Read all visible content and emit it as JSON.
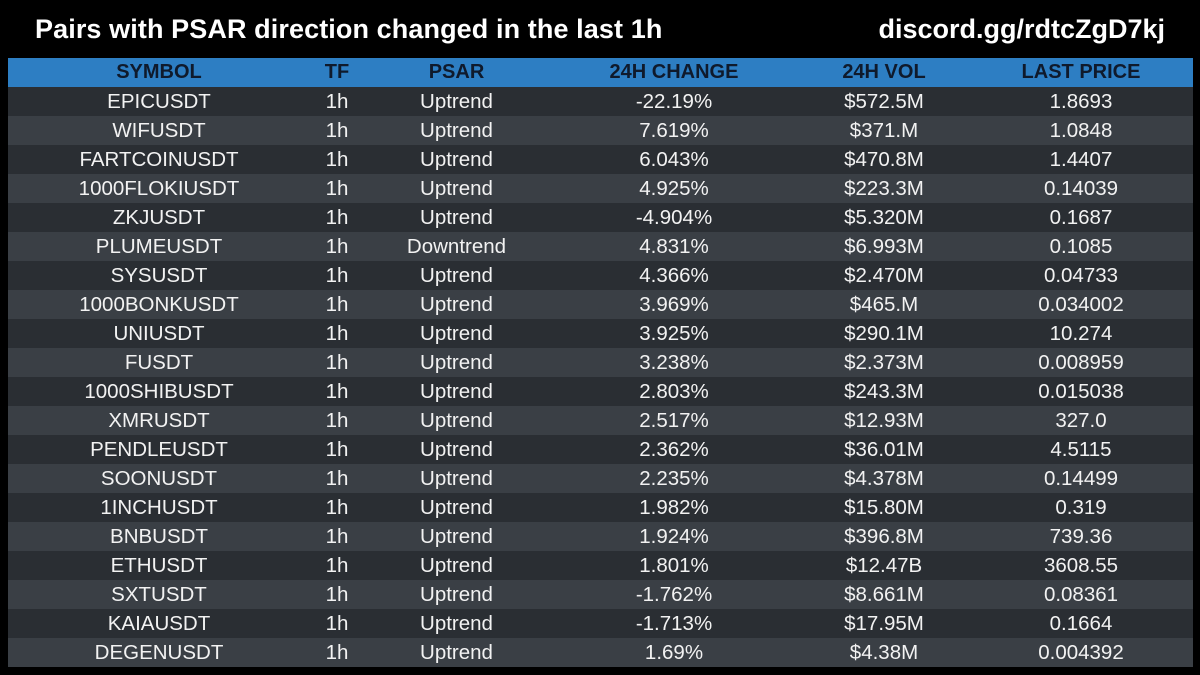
{
  "header": {
    "title": "Pairs with PSAR direction changed in the last 1h",
    "link": "discord.gg/rdtcZgD7kj"
  },
  "table": {
    "columns": [
      "SYMBOL",
      "TF",
      "PSAR",
      "24H CHANGE",
      "24H VOL",
      "LAST PRICE"
    ],
    "rows": [
      [
        "EPICUSDT",
        "1h",
        "Uptrend",
        "-22.19%",
        "$572.5M",
        "1.8693"
      ],
      [
        "WIFUSDT",
        "1h",
        "Uptrend",
        "7.619%",
        "$371.M",
        "1.0848"
      ],
      [
        "FARTCOINUSDT",
        "1h",
        "Uptrend",
        "6.043%",
        "$470.8M",
        "1.4407"
      ],
      [
        "1000FLOKIUSDT",
        "1h",
        "Uptrend",
        "4.925%",
        "$223.3M",
        "0.14039"
      ],
      [
        "ZKJUSDT",
        "1h",
        "Uptrend",
        "-4.904%",
        "$5.320M",
        "0.1687"
      ],
      [
        "PLUMEUSDT",
        "1h",
        "Downtrend",
        "4.831%",
        "$6.993M",
        "0.1085"
      ],
      [
        "SYSUSDT",
        "1h",
        "Uptrend",
        "4.366%",
        "$2.470M",
        "0.04733"
      ],
      [
        "1000BONKUSDT",
        "1h",
        "Uptrend",
        "3.969%",
        "$465.M",
        "0.034002"
      ],
      [
        "UNIUSDT",
        "1h",
        "Uptrend",
        "3.925%",
        "$290.1M",
        "10.274"
      ],
      [
        "FUSDT",
        "1h",
        "Uptrend",
        "3.238%",
        "$2.373M",
        "0.008959"
      ],
      [
        "1000SHIBUSDT",
        "1h",
        "Uptrend",
        "2.803%",
        "$243.3M",
        "0.015038"
      ],
      [
        "XMRUSDT",
        "1h",
        "Uptrend",
        "2.517%",
        "$12.93M",
        "327.0"
      ],
      [
        "PENDLEUSDT",
        "1h",
        "Uptrend",
        "2.362%",
        "$36.01M",
        "4.5115"
      ],
      [
        "SOONUSDT",
        "1h",
        "Uptrend",
        "2.235%",
        "$4.378M",
        "0.14499"
      ],
      [
        "1INCHUSDT",
        "1h",
        "Uptrend",
        "1.982%",
        "$15.80M",
        "0.319"
      ],
      [
        "BNBUSDT",
        "1h",
        "Uptrend",
        "1.924%",
        "$396.8M",
        "739.36"
      ],
      [
        "ETHUSDT",
        "1h",
        "Uptrend",
        "1.801%",
        "$12.47B",
        "3608.55"
      ],
      [
        "SXTUSDT",
        "1h",
        "Uptrend",
        "-1.762%",
        "$8.661M",
        "0.08361"
      ],
      [
        "KAIAUSDT",
        "1h",
        "Uptrend",
        "-1.713%",
        "$17.95M",
        "0.1664"
      ],
      [
        "DEGENUSDT",
        "1h",
        "Uptrend",
        "1.69%",
        "$4.38M",
        "0.004392"
      ]
    ]
  },
  "colors": {
    "background": "#000000",
    "header_row": "#2d7ec3",
    "row_dark": "#2a2e33",
    "row_light": "#3a3f45"
  }
}
